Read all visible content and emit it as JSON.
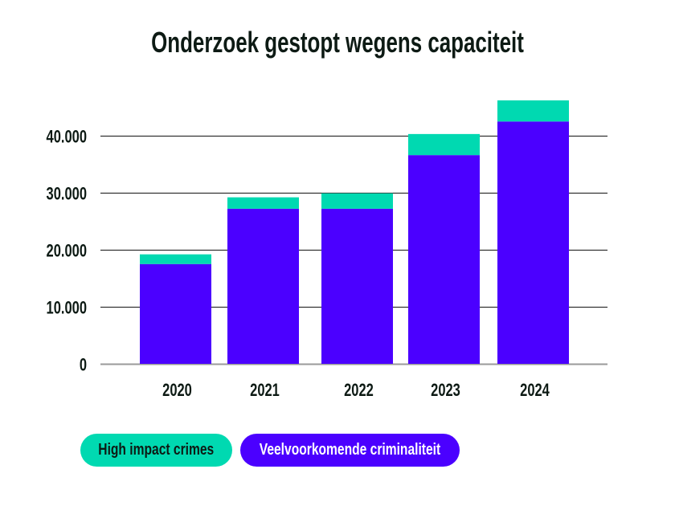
{
  "chart_data": {
    "type": "bar",
    "stacked": true,
    "title": "Onderzoek gestopt wegens capaciteit",
    "xlabel": "",
    "ylabel": "",
    "categories": [
      "2020",
      "2021",
      "2022",
      "2023",
      "2024"
    ],
    "series": [
      {
        "name": "Veelvoorkomende criminaliteit",
        "color": "#4b00ff",
        "values": [
          17500,
          27200,
          27200,
          36600,
          42500
        ]
      },
      {
        "name": "High impact crimes",
        "color": "#00d9b1",
        "values": [
          1700,
          2000,
          2700,
          3700,
          3700
        ]
      }
    ],
    "ylim": [
      0,
      46500
    ],
    "yticks": [
      0,
      10000,
      20000,
      30000,
      40000
    ],
    "ytick_labels": [
      "0",
      "10.000",
      "20.000",
      "30.000",
      "40.000"
    ],
    "grid": true,
    "legend": {
      "placement": "bottom-left",
      "items": [
        {
          "label": "High impact crimes",
          "color": "#00d9b1"
        },
        {
          "label": "Veelvoorkomende criminaliteit",
          "color": "#4b00ff"
        }
      ]
    }
  }
}
